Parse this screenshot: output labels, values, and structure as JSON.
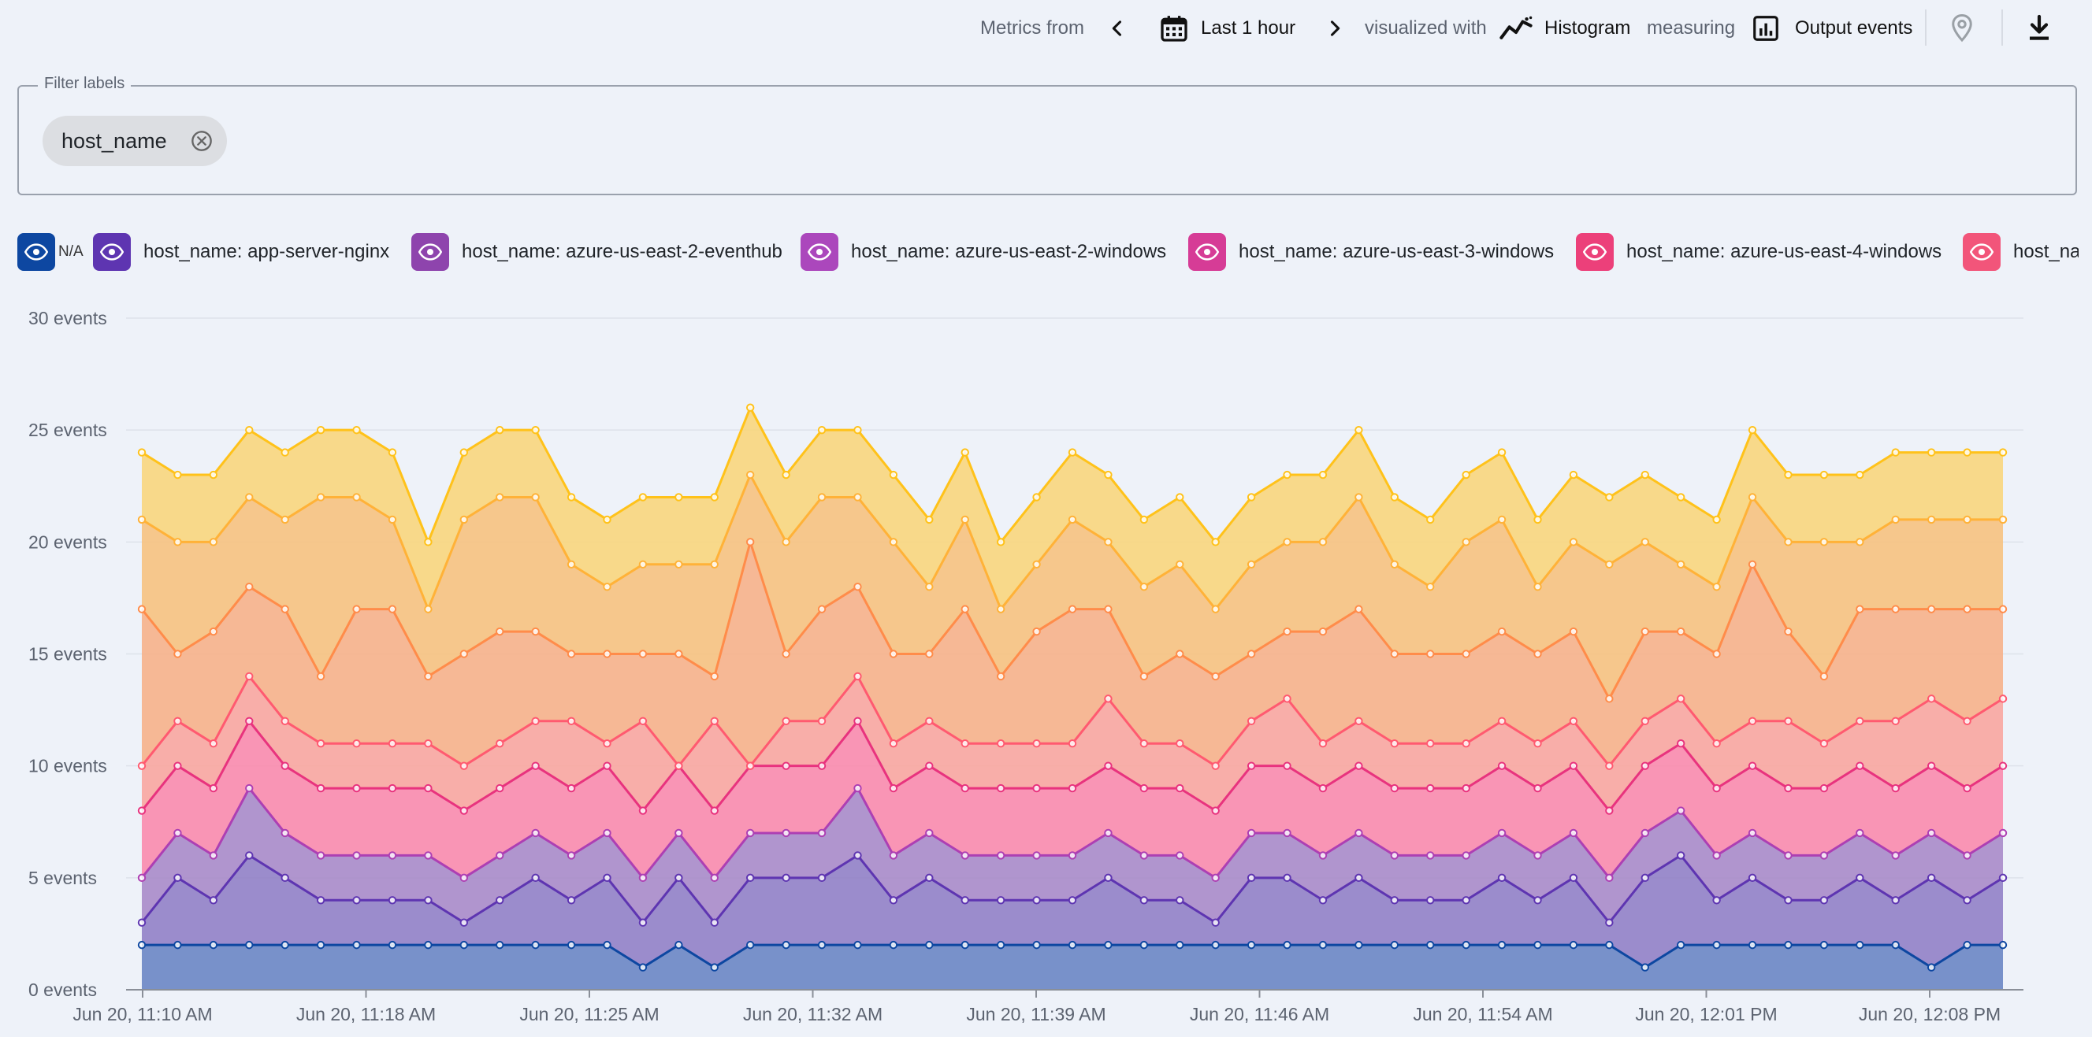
{
  "toolbar": {
    "metrics_from": "Metrics from",
    "range": "Last 1 hour",
    "visualized_with": "visualized with",
    "viz": "Histogram",
    "measuring": "measuring",
    "metric": "Output events"
  },
  "filter": {
    "legend": "Filter labels",
    "chip": "host_name"
  },
  "legend": [
    {
      "label": "N/A",
      "color": "#0d47a1"
    },
    {
      "label": "host_name: app-server-nginx",
      "color": "#5e35b1"
    },
    {
      "label": "host_name: azure-us-east-2-eventhub",
      "color": "#8e44ad"
    },
    {
      "label": "host_name: azure-us-east-2-windows",
      "color": "#ab47bc"
    },
    {
      "label": "host_name: azure-us-east-3-windows",
      "color": "#d63c96"
    },
    {
      "label": "host_name: azure-us-east-4-windows",
      "color": "#ec407a"
    },
    {
      "label": "host_na",
      "color": "#f2557a"
    }
  ],
  "chart_data": {
    "type": "area",
    "stacked": true,
    "y_unit": "events",
    "ylim": [
      0,
      30
    ],
    "y_ticks": [
      "0 events",
      "5 events",
      "10 events",
      "15 events",
      "20 events",
      "25 events",
      "30 events"
    ],
    "x_ticks": [
      "Jun 20, 11:10 AM",
      "Jun 20, 11:18 AM",
      "Jun 20, 11:25 AM",
      "Jun 20, 11:32 AM",
      "Jun 20, 11:39 AM",
      "Jun 20, 11:46 AM",
      "Jun 20, 11:54 AM",
      "Jun 20, 12:01 PM",
      "Jun 20, 12:08 PM"
    ],
    "grid": true,
    "series_colors": [
      "#0d47a1",
      "#5e35b1",
      "#ad3fb3",
      "#e8337e",
      "#ff5a70",
      "#ff8c4a",
      "#ffb238",
      "#ffc21a"
    ],
    "fill_colors": [
      "#6a86c4",
      "#9181c6",
      "#a98bc9",
      "#fa8bad",
      "#f8a6a0",
      "#f6b18a",
      "#f6c27f",
      "#f8d67d"
    ],
    "cumulative_top": [
      [
        2,
        2,
        2,
        2,
        2,
        2,
        2,
        2,
        2,
        2,
        2,
        2,
        2,
        2,
        1,
        2,
        1,
        2,
        2,
        2,
        2,
        2,
        2,
        2,
        2,
        2,
        2,
        2,
        2,
        2,
        2,
        2,
        2,
        2,
        2,
        2,
        2,
        2,
        2,
        2,
        2,
        2,
        1,
        2,
        2,
        2,
        2,
        2,
        2,
        2,
        1,
        2,
        2
      ],
      [
        3,
        5,
        4,
        6,
        5,
        4,
        4,
        4,
        4,
        3,
        4,
        5,
        4,
        5,
        3,
        5,
        3,
        5,
        5,
        5,
        6,
        4,
        5,
        4,
        4,
        4,
        4,
        5,
        4,
        4,
        3,
        5,
        5,
        4,
        5,
        4,
        4,
        4,
        5,
        4,
        5,
        3,
        5,
        6,
        4,
        5,
        4,
        4,
        5,
        4,
        5,
        4,
        5
      ],
      [
        5,
        7,
        6,
        9,
        7,
        6,
        6,
        6,
        6,
        5,
        6,
        7,
        6,
        7,
        5,
        7,
        5,
        7,
        7,
        7,
        9,
        6,
        7,
        6,
        6,
        6,
        6,
        7,
        6,
        6,
        5,
        7,
        7,
        6,
        7,
        6,
        6,
        6,
        7,
        6,
        7,
        5,
        7,
        8,
        6,
        7,
        6,
        6,
        7,
        6,
        7,
        6,
        7
      ],
      [
        8,
        10,
        9,
        12,
        10,
        9,
        9,
        9,
        9,
        8,
        9,
        10,
        9,
        10,
        8,
        10,
        8,
        10,
        10,
        10,
        12,
        9,
        10,
        9,
        9,
        9,
        9,
        10,
        9,
        9,
        8,
        10,
        10,
        9,
        10,
        9,
        9,
        9,
        10,
        9,
        10,
        8,
        10,
        11,
        9,
        10,
        9,
        9,
        10,
        9,
        10,
        9,
        10
      ],
      [
        10,
        12,
        11,
        14,
        12,
        11,
        11,
        11,
        11,
        10,
        11,
        12,
        12,
        11,
        12,
        10,
        12,
        10,
        12,
        12,
        14,
        11,
        12,
        11,
        11,
        11,
        11,
        13,
        11,
        11,
        10,
        12,
        13,
        11,
        12,
        11,
        11,
        11,
        12,
        11,
        12,
        10,
        12,
        13,
        11,
        12,
        12,
        11,
        12,
        12,
        13,
        12,
        13
      ],
      [
        17,
        15,
        16,
        18,
        17,
        14,
        17,
        17,
        14,
        15,
        16,
        16,
        15,
        15,
        15,
        15,
        14,
        20,
        15,
        17,
        18,
        15,
        15,
        17,
        14,
        16,
        17,
        17,
        14,
        15,
        14,
        15,
        16,
        16,
        17,
        15,
        15,
        15,
        16,
        15,
        16,
        13,
        16,
        16,
        15,
        19,
        16,
        14,
        17,
        17,
        17,
        17,
        17
      ],
      [
        21,
        20,
        20,
        22,
        21,
        22,
        22,
        21,
        17,
        21,
        22,
        22,
        19,
        18,
        19,
        19,
        19,
        23,
        20,
        22,
        22,
        20,
        18,
        21,
        17,
        19,
        21,
        20,
        18,
        19,
        17,
        19,
        20,
        20,
        22,
        19,
        18,
        20,
        21,
        18,
        20,
        19,
        20,
        19,
        18,
        22,
        20,
        20,
        20,
        21,
        21,
        21,
        21
      ],
      [
        24,
        23,
        23,
        25,
        24,
        25,
        25,
        24,
        20,
        24,
        25,
        25,
        22,
        21,
        22,
        22,
        22,
        26,
        23,
        25,
        25,
        23,
        21,
        24,
        20,
        22,
        24,
        23,
        21,
        22,
        20,
        22,
        23,
        23,
        25,
        22,
        21,
        23,
        24,
        21,
        23,
        22,
        23,
        22,
        21,
        25,
        23,
        23,
        23,
        24,
        24,
        24,
        24
      ]
    ]
  }
}
